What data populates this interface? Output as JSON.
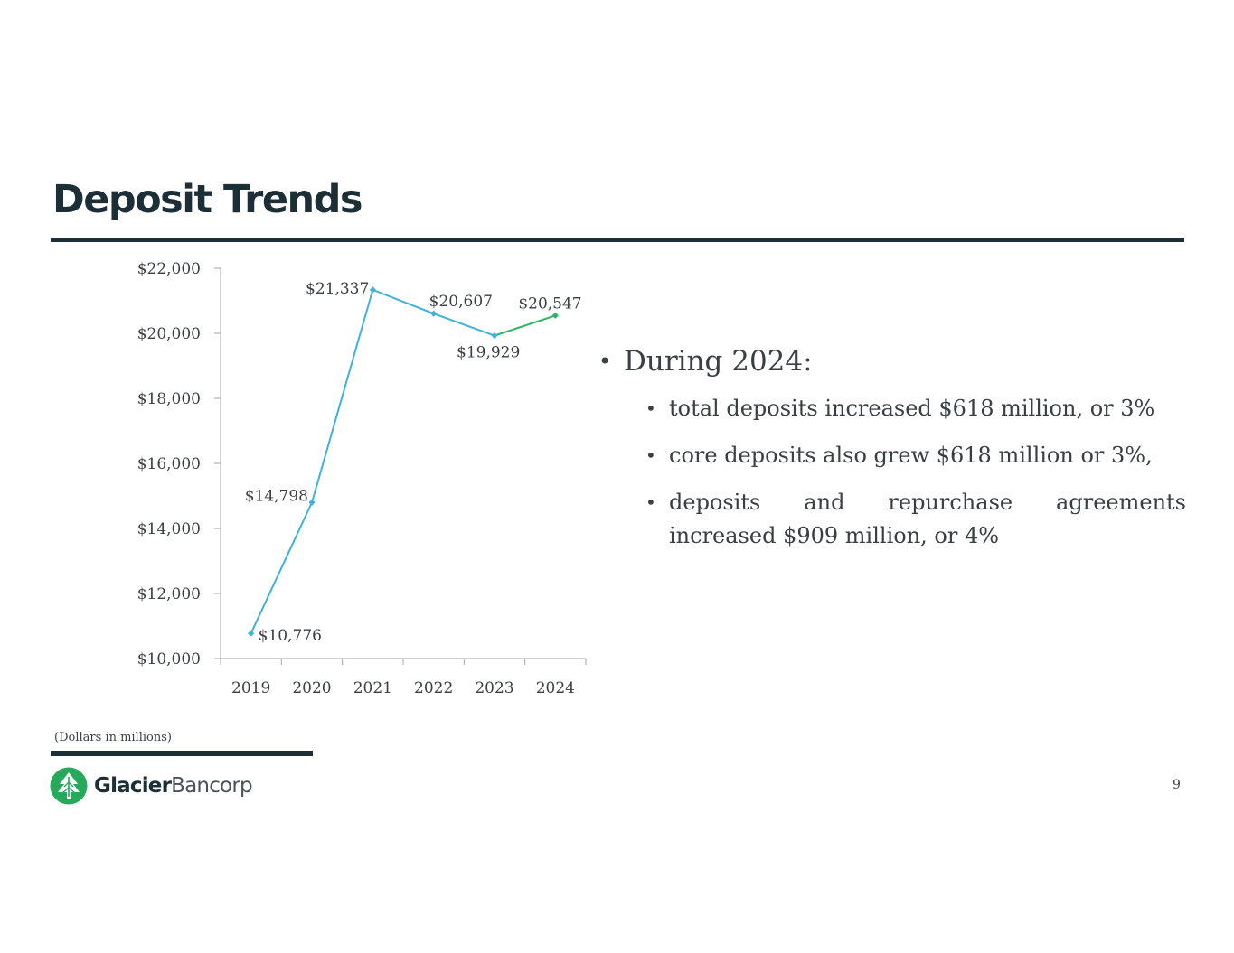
{
  "slide": {
    "title": "Deposit Trends",
    "footnote": "(Dollars in millions)",
    "page_number": "9",
    "logo": {
      "name_bold": "Glacier",
      "name_light": "Bancorp",
      "icon": "pine-tree-icon",
      "color": "#27a95c"
    }
  },
  "bullets": {
    "heading": "During 2024:",
    "items": [
      "total deposits increased $618 million, or 3%",
      "core deposits also grew $618 million or 3%,",
      "deposits and repurchase agreements increased $909 million, or 4%"
    ]
  },
  "chart_data": {
    "type": "line",
    "categories": [
      "2019",
      "2020",
      "2021",
      "2022",
      "2023",
      "2024"
    ],
    "values": [
      10776,
      14798,
      21337,
      20607,
      19929,
      20547
    ],
    "data_labels": [
      "$10,776",
      "$14,798",
      "$21,337",
      "$20,607",
      "$19,929",
      "$20,547"
    ],
    "ylim": [
      10000,
      22000
    ],
    "yticks": [
      10000,
      12000,
      14000,
      16000,
      18000,
      20000,
      22000
    ],
    "ytick_labels": [
      "$10,000",
      "$12,000",
      "$14,000",
      "$16,000",
      "$18,000",
      "$20,000",
      "$22,000"
    ],
    "grid": false,
    "colors": {
      "main": "#41b1da",
      "last_segment": "#2bb464",
      "axis": "#a6a6a6"
    },
    "xlabel": "",
    "ylabel": ""
  }
}
